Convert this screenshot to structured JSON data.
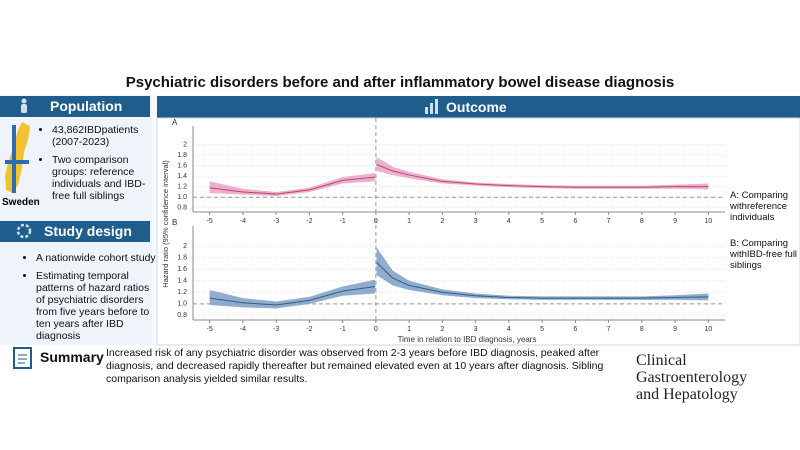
{
  "title": "Psychiatric disorders before and after inflammatory bowel disease diagnosis",
  "population": {
    "heading": "Population",
    "country": "Sweden",
    "bullets": [
      "43,862IBDpatients (2007-2023)",
      "Two comparison groups: reference individuals and IBD-free full siblings"
    ]
  },
  "study_design": {
    "heading": "Study design",
    "bullets": [
      "A nationwide cohort study",
      "Estimating temporal patterns of hazard ratios of psychiatric disorders from five years before to ten years after IBD diagnosis"
    ]
  },
  "outcome": {
    "heading": "Outcome",
    "y_label": "Hazard ratio (95% confidence interval)",
    "x_label": "Time in relation to IBD diagnosis, years",
    "notes": [
      {
        "key": "A:",
        "text": "Comparing withreference individuals"
      },
      {
        "key": "B:",
        "text": "Comparing withIBD-free full siblings"
      }
    ]
  },
  "chart_data": [
    {
      "type": "line",
      "label": "A",
      "color": "#c0437a",
      "band_color": "#e8a3c2",
      "x": [
        -5,
        -4,
        -3,
        -2,
        -1,
        -0.02,
        0,
        0.02,
        0.5,
        1,
        2,
        3,
        4,
        5,
        6,
        7,
        8,
        9,
        10
      ],
      "values": [
        1.18,
        1.1,
        1.06,
        1.14,
        1.32,
        1.38,
        null,
        1.62,
        1.5,
        1.42,
        1.3,
        1.25,
        1.22,
        1.2,
        1.19,
        1.19,
        1.19,
        1.2,
        1.2
      ],
      "lower": [
        1.08,
        1.05,
        1.02,
        1.1,
        1.26,
        1.3,
        null,
        1.5,
        1.42,
        1.36,
        1.26,
        1.22,
        1.19,
        1.17,
        1.16,
        1.16,
        1.16,
        1.16,
        1.15
      ],
      "upper": [
        1.3,
        1.16,
        1.1,
        1.18,
        1.38,
        1.46,
        null,
        1.76,
        1.58,
        1.48,
        1.34,
        1.28,
        1.25,
        1.23,
        1.22,
        1.22,
        1.22,
        1.24,
        1.26
      ],
      "xlim": [
        -5.5,
        10.5
      ],
      "xticks": [
        -5,
        -4,
        -3,
        -2,
        -1,
        0,
        1,
        2,
        3,
        4,
        5,
        6,
        7,
        8,
        9,
        10
      ],
      "ylim": [
        0.72,
        2.35
      ],
      "yticks": [
        0.8,
        {
          "value": 1,
          "label": "1.0"
        },
        1.2,
        1.4,
        1.6,
        1.8,
        2.0
      ],
      "reference_y": 1,
      "reference_x": 0,
      "grid": true
    },
    {
      "type": "line",
      "label": "B",
      "color": "#2e5d8e",
      "band_color": "#7f9dc6",
      "x": [
        -5,
        -4,
        -3,
        -2,
        -1,
        -0.02,
        0,
        0.02,
        0.5,
        1,
        2,
        3,
        4,
        5,
        6,
        7,
        8,
        9,
        10
      ],
      "values": [
        1.1,
        1.02,
        0.98,
        1.06,
        1.22,
        1.3,
        null,
        1.72,
        1.45,
        1.32,
        1.2,
        1.14,
        1.11,
        1.1,
        1.1,
        1.1,
        1.1,
        1.11,
        1.12
      ],
      "lower": [
        0.98,
        0.94,
        0.92,
        1.0,
        1.14,
        1.18,
        null,
        1.5,
        1.32,
        1.24,
        1.15,
        1.1,
        1.08,
        1.07,
        1.07,
        1.07,
        1.07,
        1.07,
        1.06
      ],
      "upper": [
        1.24,
        1.1,
        1.04,
        1.12,
        1.3,
        1.42,
        null,
        1.98,
        1.58,
        1.4,
        1.25,
        1.18,
        1.14,
        1.13,
        1.13,
        1.13,
        1.13,
        1.15,
        1.18
      ],
      "xlim": [
        -5.5,
        10.5
      ],
      "xticks": [
        -5,
        -4,
        -3,
        -2,
        -1,
        0,
        1,
        2,
        3,
        4,
        5,
        6,
        7,
        8,
        9,
        10
      ],
      "ylim": [
        0.72,
        2.35
      ],
      "yticks": [
        0.8,
        {
          "value": 1,
          "label": "1.0"
        },
        1.2,
        1.4,
        1.6,
        1.8,
        2.0
      ],
      "reference_y": 1,
      "reference_x": 0,
      "grid": true
    }
  ],
  "summary": {
    "heading": "Summary",
    "text": "Increased risk of any psychiatric disorder was observed from 2-3 years before IBD diagnosis, peaked after diagnosis, and decreased rapidly thereafter but remained elevated even at 10 years after diagnosis. Sibling comparison analysis yielded similar results."
  },
  "journal": {
    "line1": "Clinical Gastroenterology",
    "line2": "and Hepatology"
  }
}
